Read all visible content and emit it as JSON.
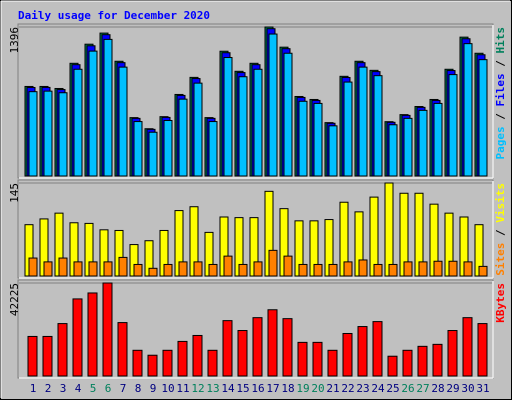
{
  "title": "Daily usage for December 2020",
  "chart_data": [
    {
      "type": "bar",
      "ylim": [
        0,
        1396
      ],
      "yticks": [
        1396
      ],
      "series": [
        {
          "name": "Hits",
          "color": "#00805c",
          "values": [
            839,
            839,
            820,
            1056,
            1235,
            1339,
            1075,
            547,
            443,
            556,
            764,
            924,
            547,
            1169,
            981,
            1056,
            1396,
            1207,
            745,
            717,
            500,
            934,
            1075,
            990,
            509,
            575,
            651,
            717,
            1000,
            1301,
            1150
          ]
        },
        {
          "name": "Files",
          "color": "#0000ff",
          "values": [
            829,
            830,
            810,
            1043,
            1220,
            1324,
            1062,
            540,
            437,
            549,
            755,
            913,
            540,
            1155,
            969,
            1043,
            1380,
            1193,
            736,
            708,
            494,
            923,
            1062,
            978,
            503,
            568,
            643,
            708,
            988,
            1286,
            1136
          ]
        },
        {
          "name": "Pages",
          "color": "#00c0ff",
          "values": [
            790,
            795,
            780,
            1000,
            1170,
            1280,
            1020,
            510,
            410,
            520,
            720,
            870,
            510,
            1110,
            930,
            1000,
            1330,
            1150,
            700,
            680,
            470,
            880,
            1020,
            940,
            480,
            540,
            615,
            680,
            950,
            1240,
            1090
          ]
        }
      ]
    },
    {
      "type": "bar",
      "ylim": [
        0,
        145
      ],
      "yticks": [
        145
      ],
      "series": [
        {
          "name": "Visits",
          "color": "#ffff00",
          "values": [
            80,
            89,
            98,
            83,
            82,
            72,
            71,
            49,
            55,
            71,
            102,
            108,
            68,
            92,
            91,
            91,
            132,
            105,
            86,
            86,
            88,
            115,
            100,
            123,
            145,
            129,
            129,
            112,
            98,
            92,
            80
          ]
        },
        {
          "name": "Sites",
          "color": "#ff8000",
          "values": [
            28,
            22,
            28,
            22,
            22,
            22,
            29,
            18,
            12,
            18,
            22,
            22,
            18,
            31,
            18,
            22,
            40,
            31,
            18,
            18,
            18,
            22,
            25,
            18,
            18,
            22,
            22,
            23,
            23,
            22,
            15
          ]
        }
      ]
    },
    {
      "type": "bar",
      "ylim": [
        0,
        42225
      ],
      "yticks": [
        42225
      ],
      "categories": [
        1,
        2,
        3,
        4,
        5,
        6,
        7,
        8,
        9,
        10,
        11,
        12,
        13,
        14,
        15,
        16,
        17,
        18,
        19,
        20,
        21,
        22,
        23,
        24,
        25,
        26,
        27,
        28,
        29,
        30,
        31
      ],
      "label_colors": [
        "#000080",
        "#000080",
        "#000080",
        "#000080",
        "#00805c",
        "#00805c",
        "#000080",
        "#000080",
        "#000080",
        "#000080",
        "#000080",
        "#00805c",
        "#00805c",
        "#000080",
        "#000080",
        "#000080",
        "#000080",
        "#000080",
        "#00805c",
        "#00805c",
        "#000080",
        "#000080",
        "#000080",
        "#000080",
        "#000080",
        "#00805c",
        "#00805c",
        "#000080",
        "#000080",
        "#000080",
        "#000080"
      ],
      "series": [
        {
          "name": "KBytes",
          "color": "#ff0000",
          "values": [
            17960,
            17960,
            23800,
            35000,
            37700,
            42225,
            24250,
            11670,
            9430,
            11670,
            15700,
            18400,
            11670,
            25140,
            20650,
            26490,
            30080,
            26040,
            15270,
            15270,
            11670,
            19300,
            22450,
            24700,
            8980,
            11670,
            13470,
            14370,
            20650,
            26490,
            23800
          ]
        }
      ]
    }
  ]
}
